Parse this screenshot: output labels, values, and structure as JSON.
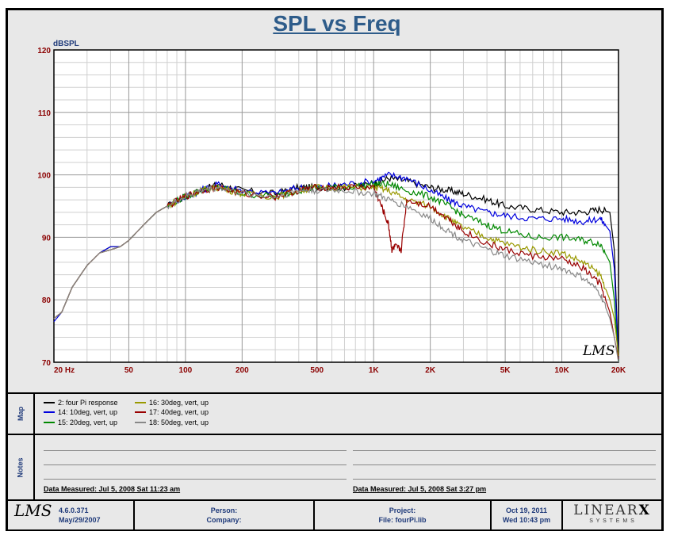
{
  "title": "SPL vs Freq",
  "chart_data": {
    "type": "line",
    "title": "SPL vs Freq",
    "ylabel": "dBSPL",
    "xscale": "log",
    "xlim": [
      20,
      20000
    ],
    "ylim": [
      70,
      120
    ],
    "yticks": [
      70,
      80,
      90,
      100,
      110,
      120
    ],
    "xticks": [
      {
        "v": 20,
        "label": "20  Hz"
      },
      {
        "v": 50,
        "label": "50"
      },
      {
        "v": 100,
        "label": "100"
      },
      {
        "v": 200,
        "label": "200"
      },
      {
        "v": 500,
        "label": "500"
      },
      {
        "v": 1000,
        "label": "1K"
      },
      {
        "v": 2000,
        "label": "2K"
      },
      {
        "v": 5000,
        "label": "5K"
      },
      {
        "v": 10000,
        "label": "10K"
      },
      {
        "v": 20000,
        "label": "20K"
      }
    ],
    "watermark": "LMS",
    "series": [
      {
        "name": "2: four Pi response",
        "color": "#000000",
        "points": [
          [
            20,
            77
          ],
          [
            22,
            78
          ],
          [
            25,
            82
          ],
          [
            30,
            85.5
          ],
          [
            35,
            87.5
          ],
          [
            40,
            88.5
          ],
          [
            45,
            88.5
          ],
          [
            50,
            89.5
          ],
          [
            60,
            92
          ],
          [
            70,
            94
          ],
          [
            80,
            95
          ],
          [
            100,
            96.5
          ],
          [
            120,
            97.5
          ],
          [
            150,
            98.5
          ],
          [
            200,
            97.5
          ],
          [
            300,
            97
          ],
          [
            400,
            98
          ],
          [
            500,
            98
          ],
          [
            700,
            98
          ],
          [
            1000,
            98.5
          ],
          [
            1200,
            99.5
          ],
          [
            1500,
            99
          ],
          [
            2000,
            98
          ],
          [
            2500,
            97.5
          ],
          [
            3000,
            97
          ],
          [
            4000,
            96
          ],
          [
            5000,
            95
          ],
          [
            7000,
            94.5
          ],
          [
            10000,
            94
          ],
          [
            13000,
            94
          ],
          [
            16000,
            94.5
          ],
          [
            18000,
            94
          ],
          [
            19000,
            88
          ],
          [
            20000,
            70
          ]
        ]
      },
      {
        "name": "14: 10deg, vert, up",
        "color": "#0000dd",
        "points": [
          [
            20,
            76.5
          ],
          [
            22,
            78
          ],
          [
            25,
            82
          ],
          [
            30,
            85.5
          ],
          [
            35,
            87.5
          ],
          [
            40,
            88.5
          ],
          [
            45,
            88.5
          ],
          [
            50,
            89.5
          ],
          [
            60,
            92
          ],
          [
            70,
            94
          ],
          [
            80,
            95
          ],
          [
            100,
            96.5
          ],
          [
            120,
            97.5
          ],
          [
            150,
            98.5
          ],
          [
            200,
            97.5
          ],
          [
            300,
            97
          ],
          [
            400,
            98
          ],
          [
            500,
            98
          ],
          [
            700,
            98.5
          ],
          [
            1000,
            99
          ],
          [
            1200,
            100
          ],
          [
            1500,
            99.5
          ],
          [
            2000,
            97.5
          ],
          [
            2500,
            96
          ],
          [
            3000,
            95
          ],
          [
            4000,
            94
          ],
          [
            5000,
            93.5
          ],
          [
            7000,
            93
          ],
          [
            10000,
            93
          ],
          [
            13000,
            92.5
          ],
          [
            16000,
            93
          ],
          [
            18000,
            91
          ],
          [
            19000,
            85
          ],
          [
            20000,
            70
          ]
        ]
      },
      {
        "name": "15: 20deg, vert, up",
        "color": "#008800",
        "points": [
          [
            20,
            77
          ],
          [
            22,
            78
          ],
          [
            25,
            82
          ],
          [
            30,
            85.5
          ],
          [
            35,
            87.5
          ],
          [
            40,
            88
          ],
          [
            45,
            88.5
          ],
          [
            50,
            89.5
          ],
          [
            60,
            92
          ],
          [
            70,
            94
          ],
          [
            80,
            95
          ],
          [
            100,
            96.5
          ],
          [
            120,
            97.5
          ],
          [
            150,
            98
          ],
          [
            200,
            97
          ],
          [
            300,
            96.5
          ],
          [
            400,
            97.5
          ],
          [
            500,
            98
          ],
          [
            700,
            98
          ],
          [
            1000,
            98.5
          ],
          [
            1200,
            98.5
          ],
          [
            1500,
            97.5
          ],
          [
            2000,
            96.5
          ],
          [
            2500,
            95
          ],
          [
            3000,
            93.5
          ],
          [
            4000,
            92
          ],
          [
            5000,
            91
          ],
          [
            7000,
            90
          ],
          [
            10000,
            90
          ],
          [
            13000,
            89.5
          ],
          [
            16000,
            89
          ],
          [
            18000,
            86
          ],
          [
            19000,
            80
          ],
          [
            20000,
            70
          ]
        ]
      },
      {
        "name": "16: 30deg, vert, up",
        "color": "#999900",
        "points": [
          [
            20,
            77
          ],
          [
            22,
            78
          ],
          [
            25,
            82
          ],
          [
            30,
            85.5
          ],
          [
            35,
            87.5
          ],
          [
            40,
            88
          ],
          [
            45,
            88.5
          ],
          [
            50,
            89.5
          ],
          [
            60,
            92
          ],
          [
            70,
            94
          ],
          [
            80,
            95
          ],
          [
            100,
            96.5
          ],
          [
            120,
            97.5
          ],
          [
            150,
            98
          ],
          [
            200,
            97
          ],
          [
            300,
            96.5
          ],
          [
            400,
            97.5
          ],
          [
            500,
            98
          ],
          [
            700,
            98
          ],
          [
            1000,
            98
          ],
          [
            1200,
            97.5
          ],
          [
            1500,
            96
          ],
          [
            2000,
            95
          ],
          [
            2500,
            93
          ],
          [
            3000,
            91.5
          ],
          [
            4000,
            90
          ],
          [
            5000,
            89
          ],
          [
            7000,
            88
          ],
          [
            10000,
            87.5
          ],
          [
            13000,
            86
          ],
          [
            16000,
            84
          ],
          [
            18000,
            80
          ],
          [
            19000,
            77
          ],
          [
            20000,
            71
          ]
        ]
      },
      {
        "name": "17: 40deg, vert, up",
        "color": "#990000",
        "points": [
          [
            20,
            77
          ],
          [
            22,
            78
          ],
          [
            25,
            82
          ],
          [
            30,
            85.5
          ],
          [
            35,
            87.5
          ],
          [
            40,
            88
          ],
          [
            45,
            88.5
          ],
          [
            50,
            89.5
          ],
          [
            60,
            92
          ],
          [
            70,
            94
          ],
          [
            80,
            95
          ],
          [
            100,
            96.5
          ],
          [
            120,
            97.5
          ],
          [
            150,
            98
          ],
          [
            200,
            97
          ],
          [
            300,
            96.5
          ],
          [
            400,
            97.5
          ],
          [
            500,
            98
          ],
          [
            700,
            98
          ],
          [
            1000,
            98
          ],
          [
            1100,
            95
          ],
          [
            1200,
            92
          ],
          [
            1250,
            88
          ],
          [
            1300,
            88.5
          ],
          [
            1400,
            88
          ],
          [
            1500,
            96
          ],
          [
            2000,
            95
          ],
          [
            2500,
            93
          ],
          [
            3000,
            91
          ],
          [
            4000,
            89
          ],
          [
            5000,
            88
          ],
          [
            7000,
            87
          ],
          [
            10000,
            86.5
          ],
          [
            13000,
            85
          ],
          [
            16000,
            82.5
          ],
          [
            18000,
            78
          ],
          [
            19000,
            74
          ],
          [
            20000,
            70.5
          ]
        ]
      },
      {
        "name": "18: 50deg, vert, up",
        "color": "#888888",
        "points": [
          [
            20,
            77
          ],
          [
            22,
            78
          ],
          [
            25,
            82
          ],
          [
            30,
            85.5
          ],
          [
            35,
            87.5
          ],
          [
            40,
            88
          ],
          [
            45,
            88.5
          ],
          [
            50,
            89.5
          ],
          [
            60,
            92
          ],
          [
            70,
            94
          ],
          [
            80,
            95
          ],
          [
            100,
            96.5
          ],
          [
            120,
            97.5
          ],
          [
            150,
            98
          ],
          [
            200,
            97
          ],
          [
            300,
            96.5
          ],
          [
            400,
            97.5
          ],
          [
            500,
            97.5
          ],
          [
            700,
            97.5
          ],
          [
            1000,
            97
          ],
          [
            1200,
            96
          ],
          [
            1500,
            95
          ],
          [
            2000,
            93
          ],
          [
            2500,
            91
          ],
          [
            3000,
            89.5
          ],
          [
            4000,
            88
          ],
          [
            5000,
            87
          ],
          [
            7000,
            86
          ],
          [
            10000,
            85
          ],
          [
            13000,
            83.5
          ],
          [
            16000,
            81
          ],
          [
            18000,
            77
          ],
          [
            19000,
            74
          ],
          [
            20000,
            70
          ]
        ]
      }
    ]
  },
  "map_label": "Map",
  "notes_label": "Notes",
  "notes": {
    "left_measured": "Data Measured: Jul  5, 2008  Sat 11:23 am",
    "right_measured": "Data Measured: Jul  5, 2008  Sat  3:27 pm"
  },
  "footer": {
    "logo": "LMS",
    "version": "4.6.0.371",
    "version_date": "May/29/2007",
    "person_label": "Person:",
    "company_label": "Company:",
    "project_label": "Project:",
    "file_label": "File: fourPi.lib",
    "date": "Oct 19, 2011",
    "time": "Wed 10:43 pm",
    "brand_top": "LINEAR",
    "brand_x": "X",
    "brand_bottom": "S  Y  S  T  E  M  S"
  }
}
